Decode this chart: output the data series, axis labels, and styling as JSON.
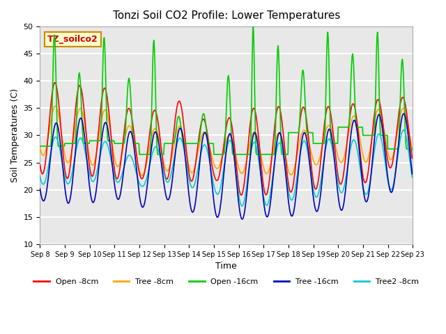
{
  "title": "Tonzi Soil CO2 Profile: Lower Temperatures",
  "xlabel": "Time",
  "ylabel": "Soil Temperatures (C)",
  "ylim": [
    10,
    50
  ],
  "n_days": 15,
  "pts_per_day": 48,
  "background_color": "#e8e8e8",
  "grid_color": "white",
  "legend_label": "TZ_soilco2",
  "series_names": [
    "Open -8cm",
    "Tree -8cm",
    "Open -16cm",
    "Tree -16cm",
    "Tree2 -8cm"
  ],
  "series_colors": [
    "#ff0000",
    "#ffa500",
    "#00cc00",
    "#0000bb",
    "#00cccc"
  ],
  "tick_labels": [
    "Sep 8",
    "Sep 9",
    "Sep 10",
    "Sep 11",
    "Sep 12",
    "Sep 13",
    "Sep 14",
    "Sep 15",
    "Sep 16",
    "Sep 17",
    "Sep 18",
    "Sep 19",
    "Sep 20",
    "Sep 21",
    "Sep 22",
    "Sep 23"
  ],
  "yticks": [
    10,
    15,
    20,
    25,
    30,
    35,
    40,
    45,
    50
  ],
  "open8_peaks": [
    40.0,
    39.5,
    39.0,
    38.5,
    32.5,
    36.0,
    36.5,
    30.5,
    35.0,
    35.0,
    35.5,
    35.0,
    35.5,
    36.0,
    37.0
  ],
  "open8_mins": [
    23.0,
    22.0,
    22.5,
    22.0,
    22.0,
    22.0,
    21.5,
    22.0,
    19.0,
    19.0,
    19.5,
    20.0,
    21.0,
    21.0,
    24.0
  ],
  "tree8_peaks": [
    36.0,
    35.0,
    35.0,
    34.5,
    30.0,
    32.0,
    31.5,
    30.0,
    30.0,
    31.0,
    30.0,
    31.5,
    32.0,
    34.5,
    35.0
  ],
  "tree8_mins": [
    26.5,
    25.0,
    24.5,
    24.5,
    22.5,
    23.5,
    23.0,
    24.0,
    23.0,
    23.0,
    22.5,
    24.5,
    25.0,
    25.0,
    25.5
  ],
  "open16_peaks": [
    48.5,
    41.5,
    48.0,
    40.5,
    47.5,
    33.5,
    34.0,
    41.0,
    50.0,
    46.5,
    42.0,
    49.0,
    45.0,
    49.0,
    44.0
  ],
  "open16_mins": [
    28.0,
    28.5,
    29.0,
    28.5,
    26.5,
    28.5,
    28.5,
    26.5,
    26.5,
    26.5,
    30.5,
    28.5,
    31.5,
    30.0,
    27.5
  ],
  "open16_sharpness": [
    0.15,
    0.18,
    0.15,
    0.2,
    0.15,
    0.22,
    0.22,
    0.18,
    0.12,
    0.15,
    0.18,
    0.14,
    0.16,
    0.13,
    0.17
  ],
  "tree16_peaks": [
    30.0,
    33.5,
    33.0,
    32.0,
    30.0,
    31.0,
    31.5,
    30.0,
    30.5,
    30.5,
    30.5,
    30.5,
    31.5,
    33.5,
    34.0
  ],
  "tree16_mins": [
    18.0,
    17.5,
    17.5,
    18.5,
    16.5,
    18.5,
    16.0,
    15.0,
    14.5,
    15.0,
    15.0,
    16.0,
    16.0,
    17.5,
    19.5
  ],
  "tree28_peaks": [
    30.0,
    29.5,
    29.5,
    28.5,
    25.0,
    29.5,
    29.5,
    27.5,
    30.0,
    28.0,
    29.0,
    29.0,
    29.5,
    29.0,
    31.0
  ],
  "tree28_mins": [
    21.0,
    21.0,
    21.5,
    21.5,
    20.5,
    21.5,
    20.5,
    19.5,
    17.0,
    17.0,
    18.0,
    18.5,
    19.5,
    19.0,
    20.0
  ]
}
